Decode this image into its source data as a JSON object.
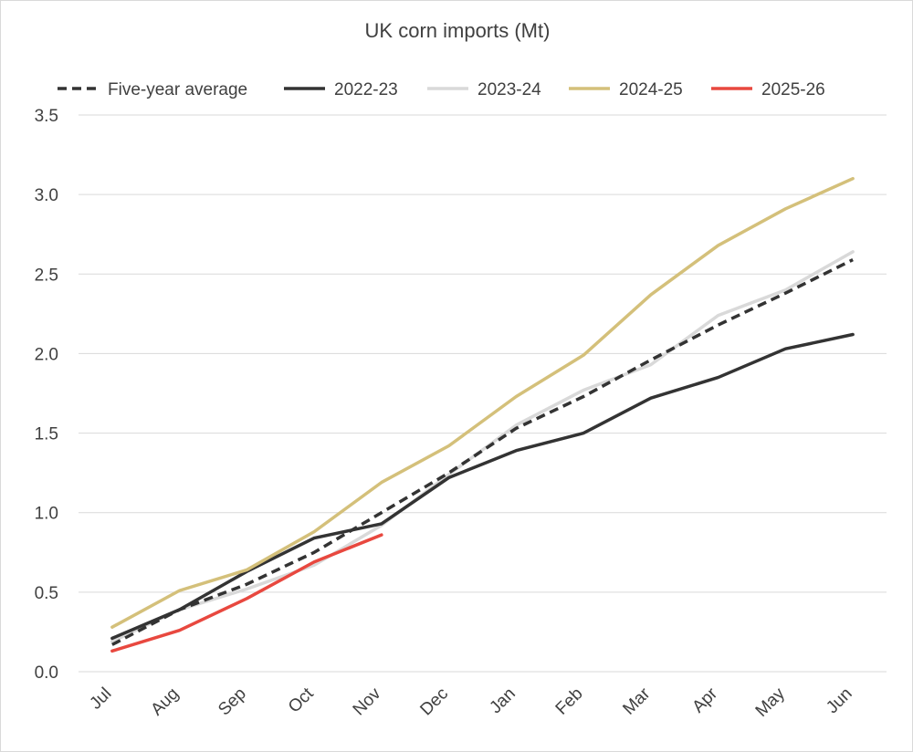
{
  "chart_data": {
    "type": "line",
    "title": "UK corn imports (Mt)",
    "xlabel": "",
    "ylabel": "",
    "ylim": [
      0,
      3.5
    ],
    "yticks": [
      "0.0",
      "0.5",
      "1.0",
      "1.5",
      "2.0",
      "2.5",
      "3.0",
      "3.5"
    ],
    "ytick_values": [
      0,
      0.5,
      1.0,
      1.5,
      2.0,
      2.5,
      3.0,
      3.5
    ],
    "categories": [
      "Jul",
      "Aug",
      "Sep",
      "Oct",
      "Nov",
      "Dec",
      "Jan",
      "Feb",
      "Mar",
      "Apr",
      "May",
      "Jun"
    ],
    "grid": "horizontal",
    "legend_position": "top",
    "series": [
      {
        "name": "Five-year average",
        "color": "#333333",
        "dash": true,
        "values": [
          0.17,
          0.39,
          0.55,
          0.75,
          1.0,
          1.25,
          1.53,
          1.73,
          1.96,
          2.18,
          2.38,
          2.59
        ]
      },
      {
        "name": "2022-23",
        "color": "#333333",
        "dash": false,
        "values": [
          0.21,
          0.39,
          0.63,
          0.84,
          0.93,
          1.22,
          1.39,
          1.5,
          1.72,
          1.85,
          2.03,
          2.12
        ]
      },
      {
        "name": "2023-24",
        "color": "#d9d9d9",
        "dash": false,
        "values": [
          0.19,
          0.39,
          0.52,
          0.67,
          0.92,
          1.24,
          1.55,
          1.77,
          1.93,
          2.24,
          2.4,
          2.64
        ]
      },
      {
        "name": "2024-25",
        "color": "#d4c07a",
        "dash": false,
        "values": [
          0.28,
          0.51,
          0.64,
          0.88,
          1.19,
          1.42,
          1.73,
          1.99,
          2.37,
          2.68,
          2.91,
          3.1
        ]
      },
      {
        "name": "2025-26",
        "color": "#e8483f",
        "dash": false,
        "values": [
          0.13,
          0.26,
          0.46,
          0.69,
          0.86,
          null,
          null,
          null,
          null,
          null,
          null,
          null
        ]
      }
    ]
  }
}
